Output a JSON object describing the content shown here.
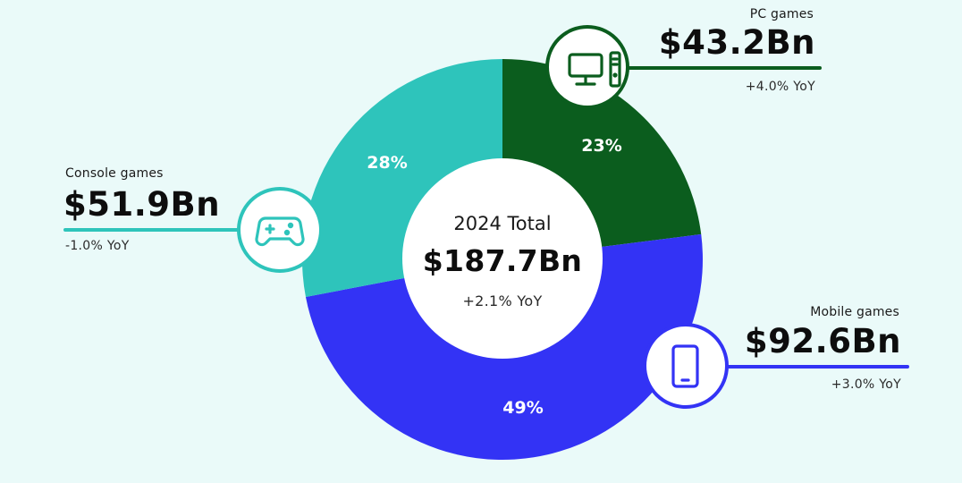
{
  "chart_data": {
    "type": "pie",
    "subtype": "donut",
    "title": "2024 Total",
    "total": {
      "label": "2024 Total",
      "value": "$187.7Bn",
      "value_bn": 187.7,
      "yoy": "+2.1% YoY"
    },
    "categories": [
      "PC games",
      "Mobile games",
      "Console games"
    ],
    "values": [
      43.2,
      92.6,
      51.9
    ],
    "percentages": [
      23,
      49,
      28
    ],
    "series": [
      {
        "name": "PC games",
        "value": "$43.2Bn",
        "value_bn": 43.2,
        "percent": 23,
        "percent_label": "23%",
        "yoy": "+4.0% YoY",
        "color": "#0B5D1E",
        "icon": "desktop-computer-icon"
      },
      {
        "name": "Mobile games",
        "value": "$92.6Bn",
        "value_bn": 92.6,
        "percent": 49,
        "percent_label": "49%",
        "yoy": "+3.0% YoY",
        "color": "#3333F5",
        "icon": "smartphone-icon"
      },
      {
        "name": "Console games",
        "value": "$51.9Bn",
        "value_bn": 51.9,
        "percent": 28,
        "percent_label": "28%",
        "yoy": "-1.0% YoY",
        "color": "#2EC4BB",
        "icon": "gamepad-icon"
      }
    ],
    "legend_position": "callouts",
    "grid": false
  },
  "colors": {
    "background": "#EAFAF9",
    "pc": "#0B5D1E",
    "mobile": "#3333F5",
    "console": "#2EC4BB",
    "center": "#FFFFFF"
  }
}
